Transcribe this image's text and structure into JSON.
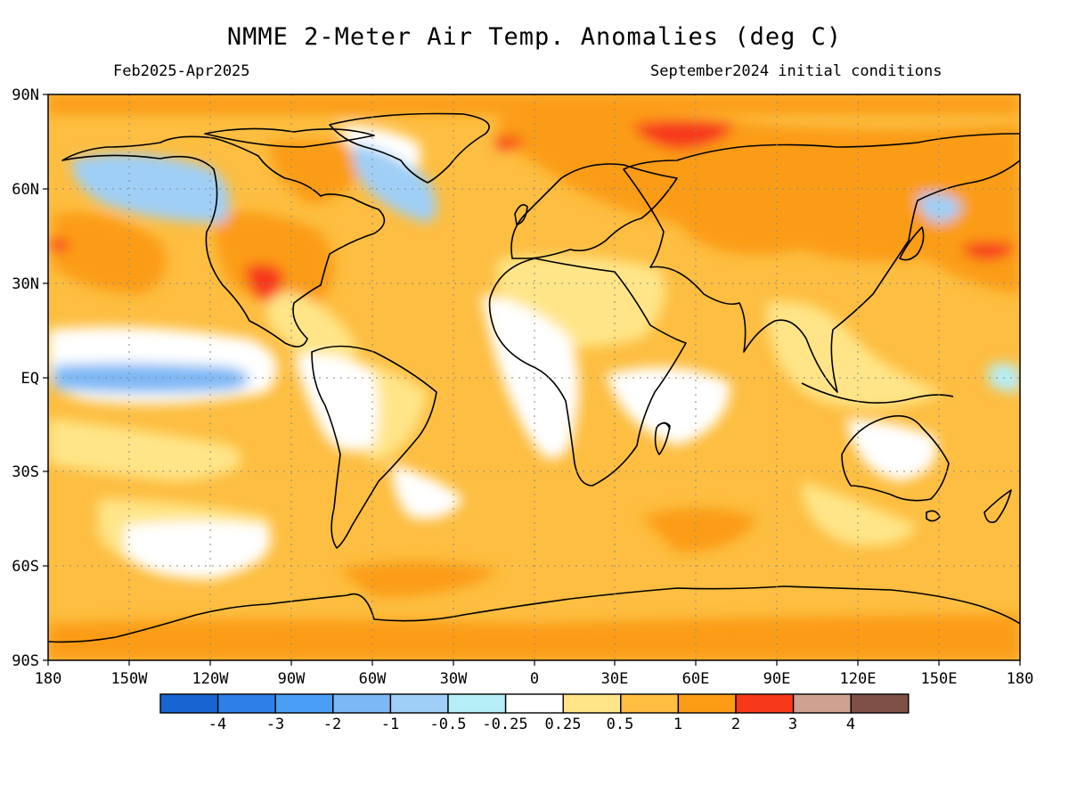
{
  "title": "NMME 2-Meter Air Temp. Anomalies (deg C)",
  "subtitle_left": "Feb2025-Apr2025",
  "subtitle_right": "September2024 initial conditions",
  "lat_labels": [
    "90N",
    "60N",
    "30N",
    "EQ",
    "30S",
    "60S",
    "90S"
  ],
  "lon_labels": [
    "180",
    "150W",
    "120W",
    "90W",
    "60W",
    "30W",
    "0",
    "30E",
    "60E",
    "90E",
    "120E",
    "150E",
    "180"
  ],
  "legend": {
    "colors": [
      "#1764d2",
      "#2e7fe8",
      "#4a9ff5",
      "#7cb8f5",
      "#9fcff6",
      "#b6eef8",
      "#ffffff",
      "#ffe588",
      "#fdbe41",
      "#fb9c14",
      "#f7391a",
      "#cfa190",
      "#7e5046"
    ],
    "labels": [
      "-4",
      "-3",
      "-2",
      "-1",
      "-0.5",
      "-0.25",
      "0.25",
      "0.5",
      "1",
      "2",
      "3",
      "4"
    ]
  }
}
